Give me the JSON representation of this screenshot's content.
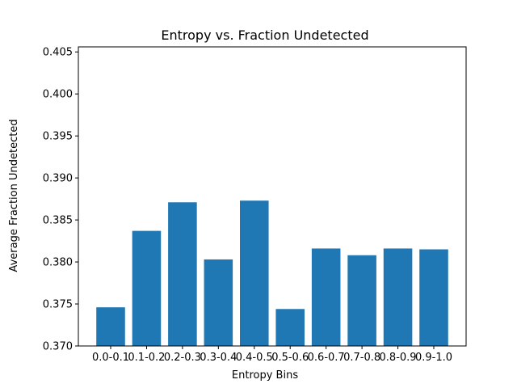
{
  "chart_data": {
    "type": "bar",
    "title": "Entropy vs. Fraction Undetected",
    "xlabel": "Entropy Bins",
    "ylabel": "Average Fraction Undetected",
    "categories": [
      "0.0-0.1",
      "0.1-0.2",
      "0.2-0.3",
      "0.3-0.4",
      "0.4-0.5",
      "0.5-0.6",
      "0.6-0.7",
      "0.7-0.8",
      "0.8-0.9",
      "0.9-1.0"
    ],
    "values": [
      0.3746,
      0.3837,
      0.3871,
      0.3803,
      0.3873,
      0.3744,
      0.3816,
      0.3808,
      0.3816,
      0.3815
    ],
    "ylim": [
      0.37,
      0.4056
    ],
    "yticks": [
      0.37,
      0.375,
      0.38,
      0.385,
      0.39,
      0.395,
      0.4,
      0.405
    ],
    "ytick_labels": [
      "0.370",
      "0.375",
      "0.380",
      "0.385",
      "0.390",
      "0.395",
      "0.400",
      "0.405"
    ],
    "grid": false,
    "bar_color": "#1f77b4"
  }
}
